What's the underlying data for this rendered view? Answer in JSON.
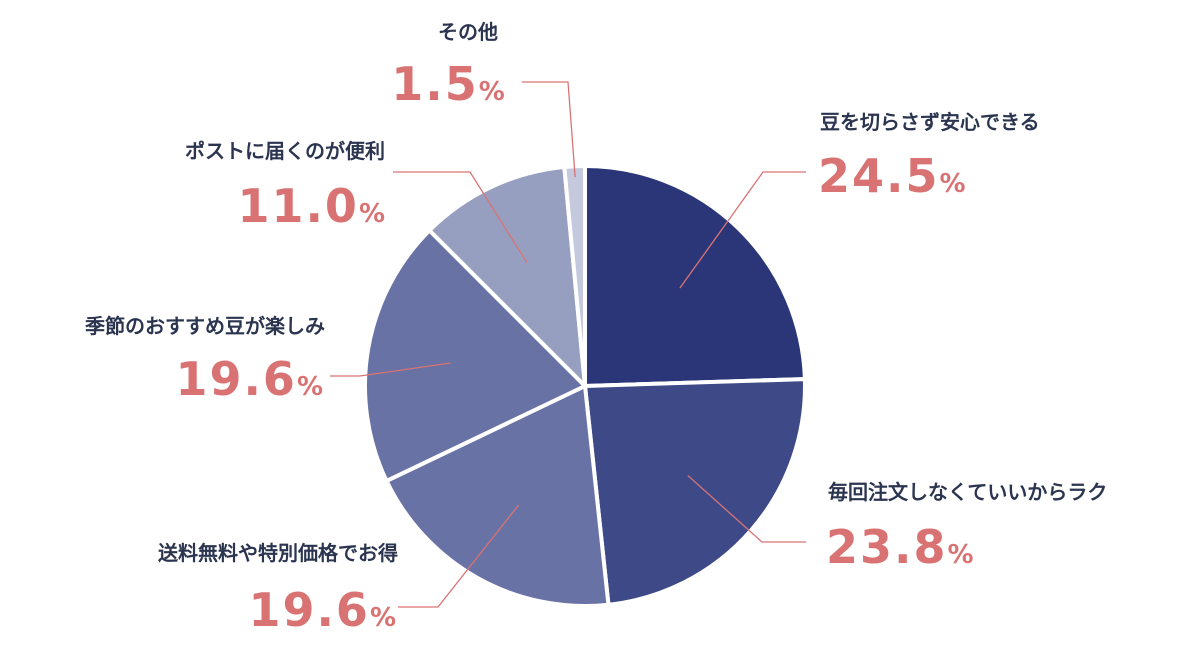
{
  "chart_data": {
    "type": "pie",
    "title": "",
    "slices": [
      {
        "label": "豆を切らさず安心できる",
        "value": 24.5,
        "value_label": "24.5",
        "unit": "%",
        "color": "#2a3678"
      },
      {
        "label": "毎回注文しなくていいからラク",
        "value": 23.8,
        "value_label": "23.8",
        "unit": "%",
        "color": "#3e4a88"
      },
      {
        "label": "送料無料や特別価格でお得",
        "value": 19.6,
        "value_label": "19.6",
        "unit": "%",
        "color": "#6872a5"
      },
      {
        "label": "季節のおすすめ豆が楽しみ",
        "value": 19.6,
        "value_label": "19.6",
        "unit": "%",
        "color": "#6872a5"
      },
      {
        "label": "ポストに届くのが便利",
        "value": 11.0,
        "value_label": "11.0",
        "unit": "%",
        "color": "#979fc0"
      },
      {
        "label": "その他",
        "value": 1.5,
        "value_label": "1.5",
        "unit": "%",
        "color": "#c4c9dd"
      }
    ],
    "start_angle": "12 o'clock",
    "direction": "clockwise",
    "legend": "none",
    "colors": {
      "label_text": "#2b3550",
      "percent_text": "#d97373",
      "leader_line": "#d97373",
      "slice_border": "#ffffff"
    }
  }
}
